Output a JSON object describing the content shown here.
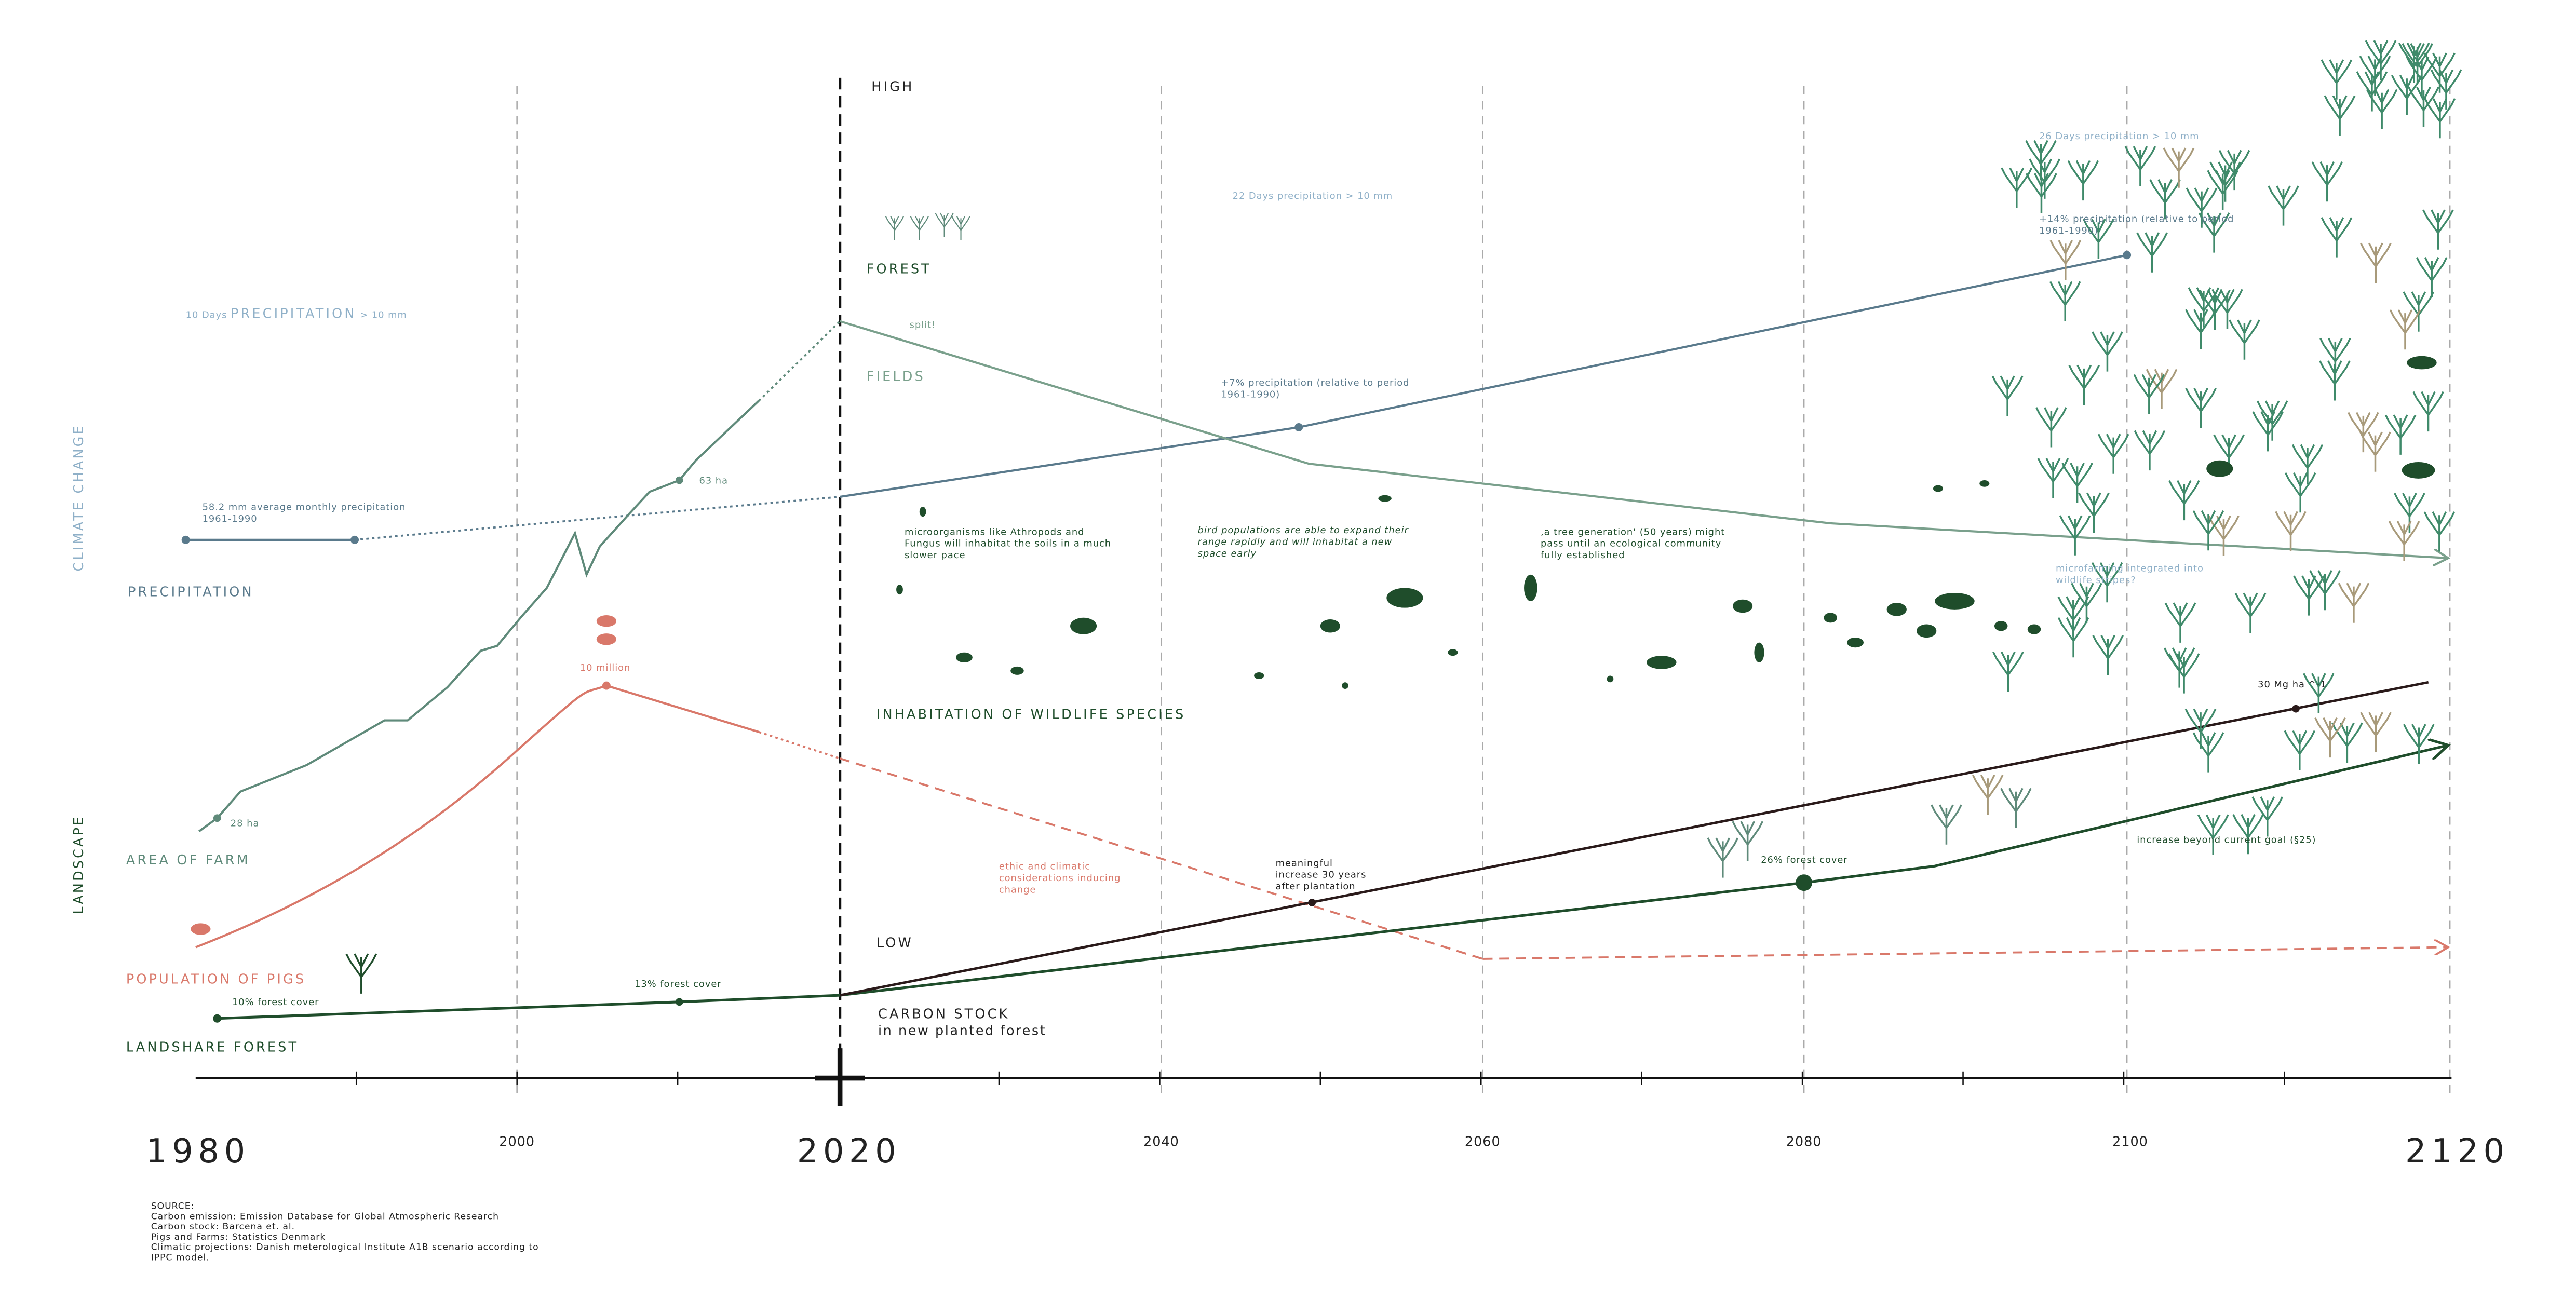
{
  "axis": {
    "ticks": [
      "1980",
      "2000",
      "2020",
      "2040",
      "2060",
      "2080",
      "2100",
      "2120"
    ]
  },
  "side_labels": {
    "climate": "CLIMATE CHANGE",
    "landscape": "LANDSCAPE"
  },
  "scale": {
    "high": "HIGH",
    "low": "LOW"
  },
  "precipitation": {
    "label": "PRECIPITATION",
    "header": {
      "days": "10 Days",
      "name": "PRECIPITATION",
      "rest": "> 10 mm"
    },
    "days_2040": "22 Days precipitation > 10 mm",
    "days_2100": "26 Days precipitation > 10 mm",
    "baseline": [
      "58.2 mm average monthly precipitation",
      "1961-1990"
    ],
    "plus7": [
      "+7% precipitation (relative to period",
      "1961-1990)"
    ],
    "plus14": [
      "+14% precipitation (relative to period",
      "1961-1990)"
    ]
  },
  "land_use": {
    "forest": "FOREST",
    "fields": "FIELDS",
    "split": "split!"
  },
  "farm": {
    "label": "AREA OF FARM",
    "start": "28 ha",
    "peak": "63 ha"
  },
  "pigs": {
    "label": "POPULATION OF PIGS",
    "peak": "10 million"
  },
  "forest": {
    "label": "LANDSHARE FOREST",
    "c1980": "10% forest cover",
    "c2010": "13% forest cover",
    "c2080": "26% forest cover",
    "goal": "increase beyond current goal (§25)"
  },
  "carbon": {
    "label": [
      "CARBON STOCK",
      "in new planted forest"
    ],
    "note": [
      "meaningful",
      "increase 30 years",
      "after plantation"
    ],
    "end": "30 Mg ha ^-1"
  },
  "wildlife": {
    "label": "INHABITATION OF WILDLIFE SPECIES",
    "micro": [
      "microorganisms like Athropods and",
      "Fungus will inhabitat the soils in a much",
      "slower pace"
    ],
    "birds": [
      "bird populations are able to expand their",
      "range rapidly and will inhabitat a new",
      "space early"
    ],
    "tree_gen": [
      ",a tree generation' (50 years) might",
      "pass until an ecological community",
      "fully established"
    ],
    "microfarming": [
      "microfarming integrated into",
      "wildlife stripes?"
    ]
  },
  "ethic": [
    "ethic and climatic",
    "considerations inducing",
    "change"
  ],
  "source": [
    "SOURCE:",
    "Carbon emission: Emission Database for Global Atmospheric Research",
    "Carbon stock: Barcena et. al.",
    "Pigs and Farms: Statistics Denmark",
    "Climatic projections: Danish meterological Institute A1B scenario according to",
    "IPPC model."
  ]
}
